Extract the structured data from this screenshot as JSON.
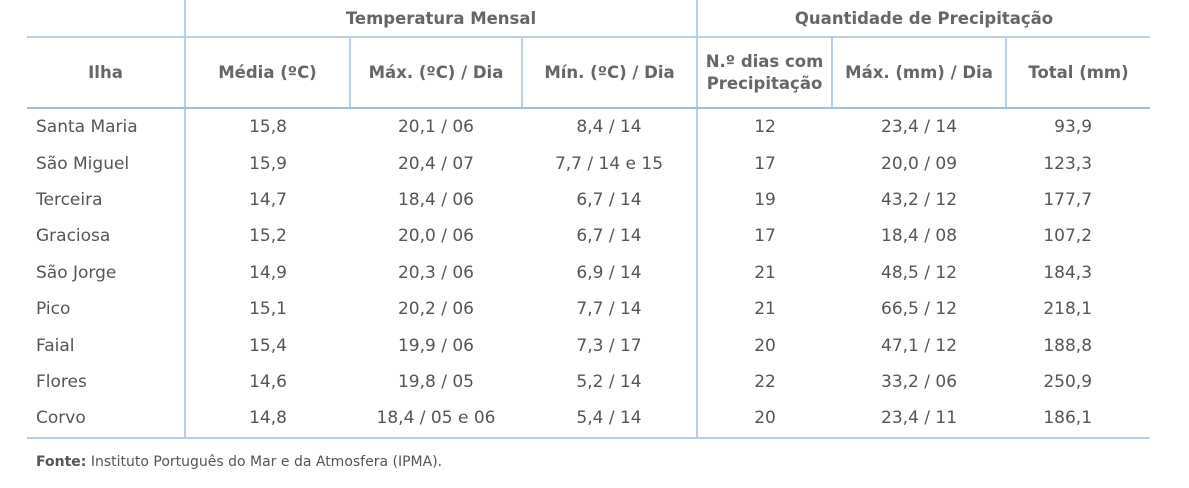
{
  "table": {
    "groups": [
      "Temperatura Mensal",
      "Quantidade de Precipitação"
    ],
    "columns": [
      "Ilha",
      "Média (ºC)",
      "Máx. (ºC) / Dia",
      "Mín. (ºC) / Dia",
      "N.º dias com Precipitação",
      "Máx. (mm) / Dia",
      "Total (mm)"
    ],
    "rows": [
      [
        "Santa Maria",
        "15,8",
        "20,1 / 06",
        "8,4 / 14",
        "12",
        "23,4 / 14",
        "93,9"
      ],
      [
        "São Miguel",
        "15,9",
        "20,4 / 07",
        "7,7 / 14 e 15",
        "17",
        "20,0 / 09",
        "123,3"
      ],
      [
        "Terceira",
        "14,7",
        "18,4 / 06",
        "6,7 / 14",
        "19",
        "43,2 / 12",
        "177,7"
      ],
      [
        "Graciosa",
        "15,2",
        "20,0 / 06",
        "6,7 / 14",
        "17",
        "18,4 / 08",
        "107,2"
      ],
      [
        "São Jorge",
        "14,9",
        "20,3 / 06",
        "6,9 / 14",
        "21",
        "48,5 / 12",
        "184,3"
      ],
      [
        "Pico",
        "15,1",
        "20,2 / 06",
        "7,7 / 14",
        "21",
        "66,5 / 12",
        "218,1"
      ],
      [
        "Faial",
        "15,4",
        "19,9 / 06",
        "7,3 / 17",
        "20",
        "47,1 / 12",
        "188,8"
      ],
      [
        "Flores",
        "14,6",
        "19,8 / 05",
        "5,2 / 14",
        "22",
        "33,2 / 06",
        "250,9"
      ],
      [
        "Corvo",
        "14,8",
        "18,4 / 05 e 06",
        "5,4 / 14",
        "20",
        "23,4 / 11",
        "186,1"
      ]
    ]
  },
  "footer": {
    "label": "Fonte:",
    "text": "Instituto Português do Mar e da Atmosfera (IPMA)."
  }
}
